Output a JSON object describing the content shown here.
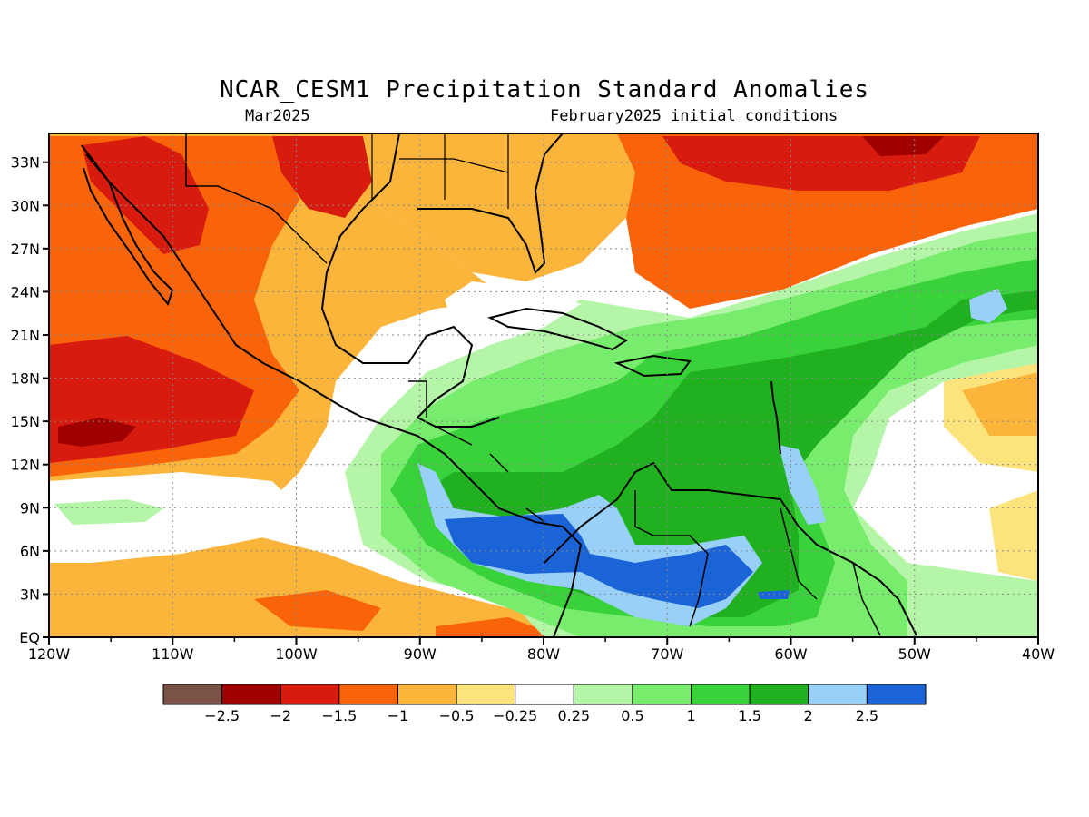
{
  "title": "NCAR_CESM1 Precipitation Standard Anomalies",
  "subtitle_left": "Mar2025",
  "subtitle_right": "February2025 initial conditions",
  "map": {
    "lon_range": [
      -120,
      -40
    ],
    "lat_range": [
      0,
      35
    ],
    "x_tick_labels": [
      "120W",
      "110W",
      "100W",
      "90W",
      "80W",
      "70W",
      "60W",
      "50W",
      "40W"
    ],
    "y_tick_labels": [
      "EQ",
      "3N",
      "6N",
      "9N",
      "12N",
      "15N",
      "18N",
      "21N",
      "24N",
      "27N",
      "30N",
      "33N"
    ],
    "grid": "dotted"
  },
  "colorbar": {
    "colors": [
      "#7a5246",
      "#a00000",
      "#d71c0f",
      "#f9640a",
      "#fbb53a",
      "#fde37c",
      "#ffffff",
      "#b4f5a8",
      "#78ec6c",
      "#3ad23a",
      "#20b020",
      "#98d0f8",
      "#1a64d8"
    ],
    "labels": [
      "-2.5",
      "-2",
      "-1.5",
      "-1",
      "-0.5",
      "-0.25",
      "0.25",
      "0.5",
      "1",
      "1.5",
      "2",
      "2.5"
    ]
  }
}
